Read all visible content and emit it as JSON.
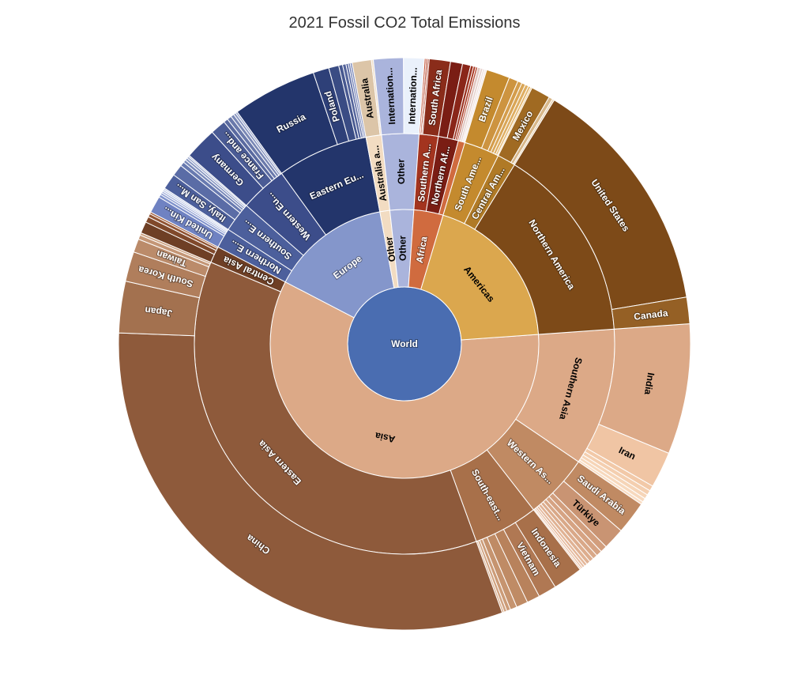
{
  "chart_data": {
    "type": "sunburst",
    "title": "2021 Fossil CO2 Total Emissions",
    "value_units": "",
    "root": {
      "name": "World",
      "color": "#4a6db1",
      "children": [
        {
          "name": "Asia",
          "color": "#dca987",
          "children": [
            {
              "name": "Southern Asia",
              "color": "#dca987",
              "children": [
                {
                  "name": "India",
                  "value": 2710,
                  "color": "#dca987"
                },
                {
                  "name": "Iran",
                  "value": 750,
                  "color": "#f0c5a4"
                },
                {
                  "name": "",
                  "value": 110,
                  "color": "#f2c9a8"
                },
                {
                  "name": "",
                  "value": 100,
                  "color": "#f4cfb0"
                },
                {
                  "name": "",
                  "value": 90,
                  "color": "#f6d5b8"
                },
                {
                  "name": "",
                  "value": 80,
                  "color": "#f7d9be"
                },
                {
                  "name": "",
                  "value": 60,
                  "color": "#f9ddc4"
                }
              ]
            },
            {
              "name": "Western As...",
              "color": "#c08a63",
              "children": [
                {
                  "name": "Saudi Arabia",
                  "value": 680,
                  "color": "#c08a63"
                },
                {
                  "name": "Türkiye",
                  "value": 450,
                  "color": "#c99473"
                },
                {
                  "name": "",
                  "value": 140,
                  "color": "#d29e7d"
                },
                {
                  "name": "",
                  "value": 120,
                  "color": "#d6a383"
                },
                {
                  "name": "",
                  "value": 100,
                  "color": "#d9a888"
                },
                {
                  "name": "",
                  "value": 90,
                  "color": "#ddad8e"
                },
                {
                  "name": "",
                  "value": 80,
                  "color": "#e0b294"
                },
                {
                  "name": "",
                  "value": 60,
                  "color": "#e4b79a"
                },
                {
                  "name": "",
                  "value": 50,
                  "color": "#e7bca0"
                },
                {
                  "name": "",
                  "value": 40,
                  "color": "#eac1a6"
                },
                {
                  "name": "",
                  "value": 30,
                  "color": "#edc6ac"
                }
              ]
            },
            {
              "name": "South-east...",
              "color": "#a8704a",
              "children": [
                {
                  "name": "Indonesia",
                  "value": 620,
                  "color": "#a8704a"
                },
                {
                  "name": "Vietnam",
                  "value": 380,
                  "color": "#b07853"
                },
                {
                  "name": "",
                  "value": 270,
                  "color": "#b8825c"
                },
                {
                  "name": "",
                  "value": 240,
                  "color": "#bf8b65"
                },
                {
                  "name": "",
                  "value": 140,
                  "color": "#c6946f"
                },
                {
                  "name": "",
                  "value": 80,
                  "color": "#cc9c78"
                },
                {
                  "name": "",
                  "value": 60,
                  "color": "#d1a482"
                },
                {
                  "name": "",
                  "value": 40,
                  "color": "#d8ad8c"
                }
              ]
            },
            {
              "name": "Eastern Asia",
              "color": "#8e5a3b",
              "children": [
                {
                  "name": "China",
                  "value": 11470,
                  "color": "#8e5a3b"
                },
                {
                  "name": "Japan",
                  "value": 1070,
                  "color": "#a3714f"
                },
                {
                  "name": "South Korea",
                  "value": 620,
                  "color": "#b07e5c"
                },
                {
                  "name": "Taiwan",
                  "value": 280,
                  "color": "#bb8b6a"
                },
                {
                  "name": "",
                  "value": 90,
                  "color": "#c49676"
                },
                {
                  "name": "",
                  "value": 50,
                  "color": "#cda383"
                }
              ]
            },
            {
              "name": "Central Asia",
              "color": "#6e3f25",
              "children": [
                {
                  "name": "",
                  "value": 240,
                  "color": "#6e3f25"
                },
                {
                  "name": "",
                  "value": 120,
                  "color": "#80492b"
                },
                {
                  "name": "",
                  "value": 70,
                  "color": "#925534"
                },
                {
                  "name": "",
                  "value": 40,
                  "color": "#a56240"
                }
              ]
            }
          ]
        },
        {
          "name": "Europe",
          "color": "#8496cb",
          "children": [
            {
              "name": "Northern E...",
              "color": "#4c5f9c",
              "children": [
                {
                  "name": "United Kin...",
                  "value": 350,
                  "color": "#6f82c2"
                },
                {
                  "name": "",
                  "value": 60,
                  "color": "#8193cc"
                },
                {
                  "name": "",
                  "value": 45,
                  "color": "#94a3d4"
                },
                {
                  "name": "",
                  "value": 40,
                  "color": "#a6b3dc"
                },
                {
                  "name": "",
                  "value": 35,
                  "color": "#b7c2e3"
                },
                {
                  "name": "",
                  "value": 35,
                  "color": "#c5cfe9"
                }
              ]
            },
            {
              "name": "Southern E...",
              "color": "#4c5f9c",
              "children": [
                {
                  "name": "Italy, San M...",
                  "value": 330,
                  "color": "#4c5f9c"
                },
                {
                  "name": "",
                  "value": 240,
                  "color": "#5a6ca6"
                },
                {
                  "name": "",
                  "value": 90,
                  "color": "#687ab0"
                },
                {
                  "name": "",
                  "value": 60,
                  "color": "#7888b9"
                },
                {
                  "name": "",
                  "value": 50,
                  "color": "#8897c2"
                },
                {
                  "name": "",
                  "value": 40,
                  "color": "#98a5cb"
                },
                {
                  "name": "",
                  "value": 30,
                  "color": "#a8b3d4"
                }
              ]
            },
            {
              "name": "Western Eu...",
              "color": "#3c4d8a",
              "children": [
                {
                  "name": "Germany",
                  "value": 670,
                  "color": "#3c4d8a"
                },
                {
                  "name": "France and...",
                  "value": 320,
                  "color": "#4a5b95"
                },
                {
                  "name": "",
                  "value": 90,
                  "color": "#5a6aa0"
                },
                {
                  "name": "",
                  "value": 90,
                  "color": "#6a79ab"
                },
                {
                  "name": "",
                  "value": 70,
                  "color": "#7a88b6"
                },
                {
                  "name": "",
                  "value": 50,
                  "color": "#8a97c1"
                },
                {
                  "name": "",
                  "value": 40,
                  "color": "#9aa6cc"
                }
              ]
            },
            {
              "name": "Eastern Eu...",
              "color": "#23356b",
              "children": [
                {
                  "name": "Russia",
                  "value": 1760,
                  "color": "#23356b"
                },
                {
                  "name": "Poland",
                  "value": 330,
                  "color": "#2e4078"
                },
                {
                  "name": "",
                  "value": 210,
                  "color": "#3a4c84"
                },
                {
                  "name": "",
                  "value": 80,
                  "color": "#475890"
                },
                {
                  "name": "",
                  "value": 70,
                  "color": "#54649b"
                },
                {
                  "name": "",
                  "value": 50,
                  "color": "#6170a6"
                },
                {
                  "name": "",
                  "value": 40,
                  "color": "#6e7cb1"
                },
                {
                  "name": "",
                  "value": 40,
                  "color": "#7c89bb"
                }
              ]
            }
          ]
        },
        {
          "name": "Other",
          "color": "#f2dcc2",
          "children": [
            {
              "name": "Australia a...",
              "color": "#f2dcc2",
              "children": [
                {
                  "name": "Australia",
                  "value": 400,
                  "color": "#dcc5a8"
                },
                {
                  "name": "",
                  "value": 40,
                  "color": "#eedcc6"
                }
              ]
            }
          ]
        },
        {
          "name": "Other",
          "color": "#aab4dc",
          "children": [
            {
              "name": "Other",
              "color": "#aab4dc",
              "children": [
                {
                  "name": "Internation...",
                  "value": 620,
                  "color": "#aab4dc"
                },
                {
                  "name": "Internation...",
                  "value": 430,
                  "color": "#eaf1fb"
                }
              ]
            }
          ]
        },
        {
          "name": "Africa",
          "color": "#d06b3f",
          "children": [
            {
              "name": "Southern A...",
              "color": "#a3341f",
              "children": [
                {
                  "name": "",
                  "value": 35,
                  "color": "#c4553a"
                },
                {
                  "name": "",
                  "value": 35,
                  "color": "#b84a30"
                },
                {
                  "name": "",
                  "value": 30,
                  "color": "#a8402a"
                },
                {
                  "name": "South Africa",
                  "value": 440,
                  "color": "#8a2c1a"
                }
              ]
            },
            {
              "name": "Northern Af...",
              "color": "#7a1d14",
              "children": [
                {
                  "name": "",
                  "value": 250,
                  "color": "#7a1d14"
                },
                {
                  "name": "",
                  "value": 170,
                  "color": "#8a2619"
                },
                {
                  "name": "",
                  "value": 60,
                  "color": "#9a301e"
                },
                {
                  "name": "",
                  "value": 50,
                  "color": "#a83a25"
                },
                {
                  "name": "",
                  "value": 40,
                  "color": "#b6462e"
                }
              ]
            },
            {
              "name": "",
              "color": "#d06b3f",
              "children": [
                {
                  "name": "",
                  "value": 60,
                  "color": "#e0c6c0"
                },
                {
                  "name": "",
                  "value": 50,
                  "color": "#e8d4cf"
                },
                {
                  "name": "",
                  "value": 40,
                  "color": "#efe0dc"
                },
                {
                  "name": "",
                  "value": 40,
                  "color": "#f3e7e4"
                }
              ]
            }
          ]
        },
        {
          "name": "Americas",
          "color": "#dba74e",
          "children": [
            {
              "name": "South Ame...",
              "color": "#c48a2e",
              "children": [
                {
                  "name": "Brazil",
                  "value": 490,
                  "color": "#c48a2e"
                },
                {
                  "name": "",
                  "value": 190,
                  "color": "#cd9440"
                },
                {
                  "name": "",
                  "value": 90,
                  "color": "#d49d4c"
                },
                {
                  "name": "",
                  "value": 80,
                  "color": "#d9a657"
                },
                {
                  "name": "",
                  "value": 70,
                  "color": "#deae62"
                },
                {
                  "name": "",
                  "value": 50,
                  "color": "#e3b66d"
                },
                {
                  "name": "",
                  "value": 30,
                  "color": "#e8be78"
                }
              ]
            },
            {
              "name": "Central Am...",
              "color": "#b07a26",
              "children": [
                {
                  "name": "Mexico",
                  "value": 400,
                  "color": "#a06a22"
                },
                {
                  "name": "",
                  "value": 80,
                  "color": "#d8b88a"
                },
                {
                  "name": "",
                  "value": 40,
                  "color": "#e6cfae"
                }
              ]
            },
            {
              "name": "Northern America",
              "color": "#7d4a18",
              "children": [
                {
                  "name": "United States",
                  "value": 5010,
                  "color": "#7d4a18"
                },
                {
                  "name": "Canada",
                  "value": 550,
                  "color": "#956025"
                }
              ]
            }
          ]
        }
      ]
    }
  }
}
